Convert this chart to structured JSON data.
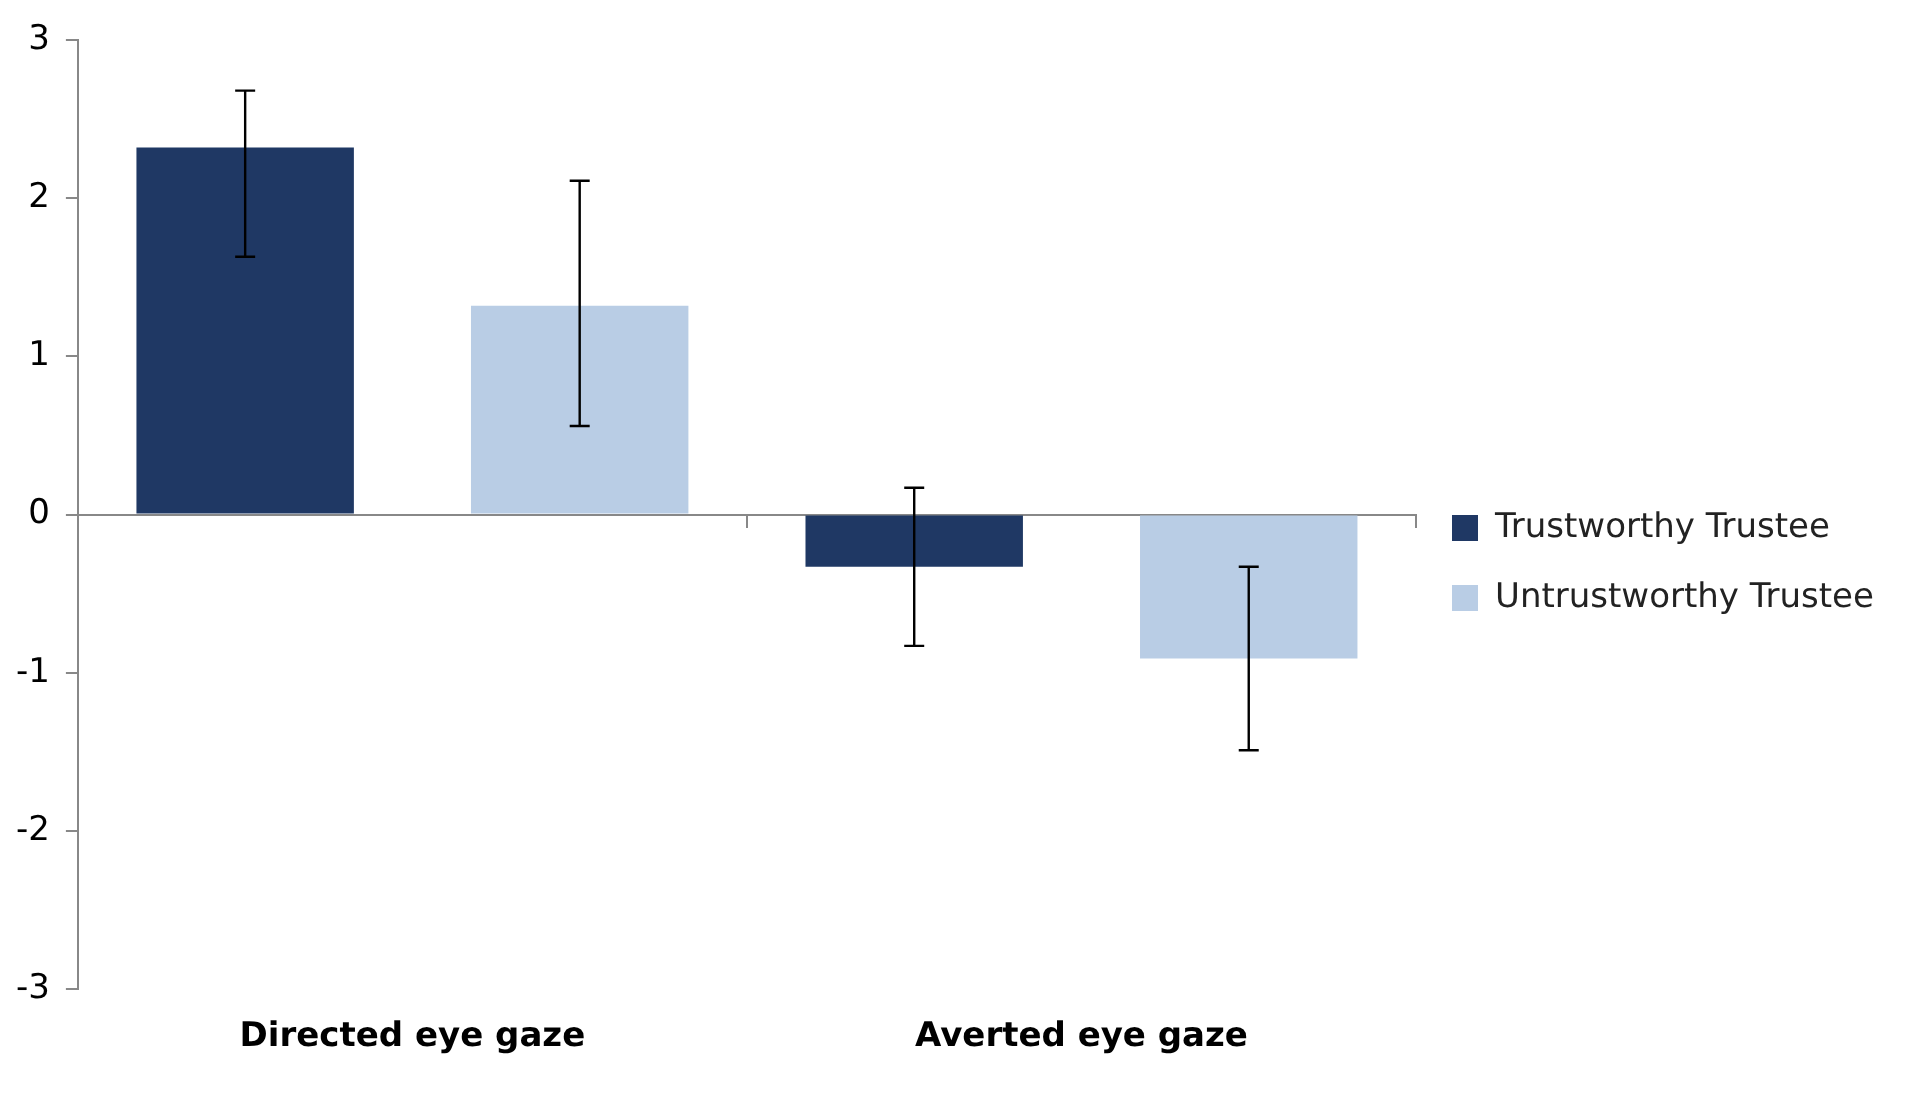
{
  "chart_data": {
    "type": "bar",
    "categories": [
      "Directed eye gaze",
      "Averted eye gaze"
    ],
    "series": [
      {
        "name": "Trustworthy Trustee",
        "color": "#1f3864",
        "values": [
          2.32,
          -0.33
        ],
        "errors": [
          [
            1.63,
            2.68
          ],
          [
            -0.83,
            0.17
          ]
        ]
      },
      {
        "name": "Untrustworthy Trustee",
        "color": "#b9cde5",
        "values": [
          1.32,
          -0.91
        ],
        "errors": [
          [
            0.56,
            2.11
          ],
          [
            -1.49,
            -0.33
          ]
        ]
      }
    ],
    "ylim": [
      -3,
      3
    ],
    "yticks": [
      -3,
      -2,
      -1,
      0,
      1,
      2,
      3
    ],
    "legend": "right"
  }
}
